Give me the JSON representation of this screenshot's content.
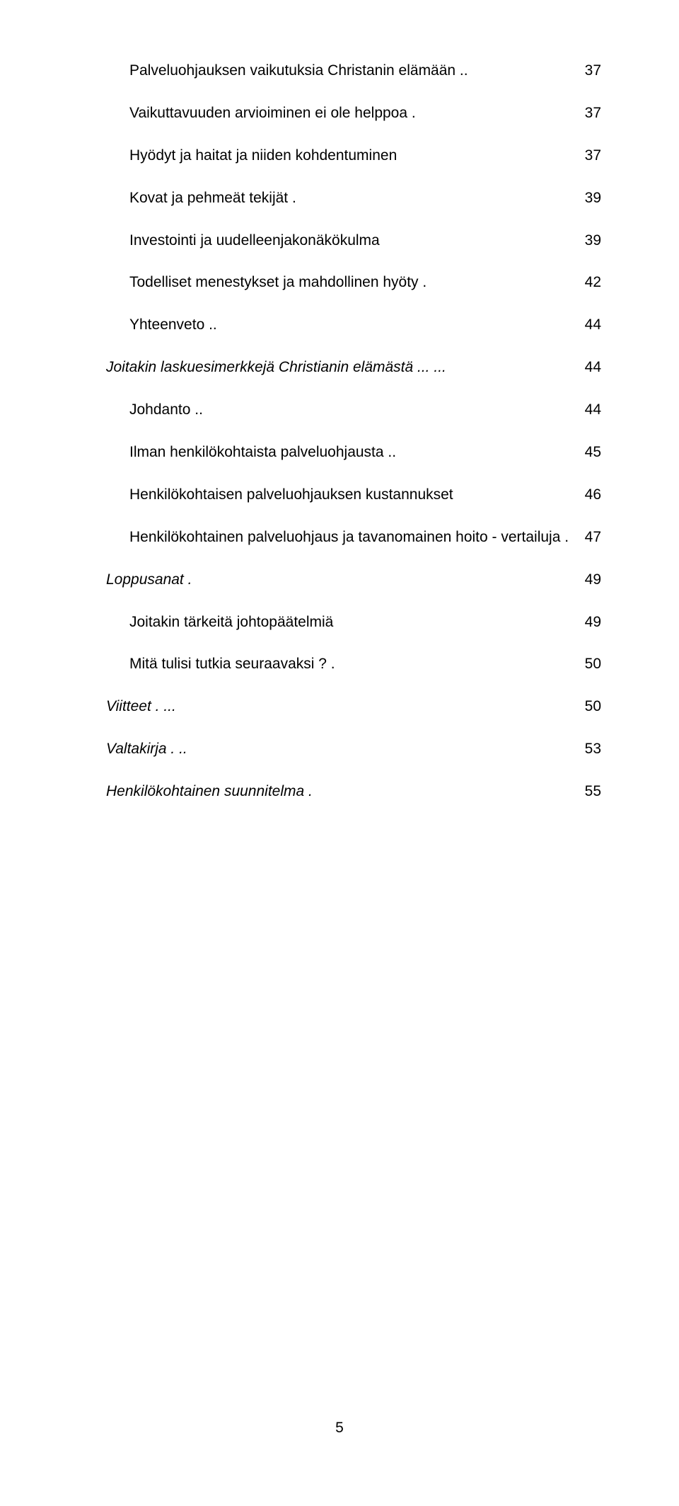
{
  "toc": [
    {
      "label": "Palveluohjauksen vaikutuksia Christanin elämään",
      "page": "37",
      "indent": 1,
      "italic": false,
      "dots": ".."
    },
    {
      "label": "Vaikuttavuuden arvioiminen ei ole helppoa",
      "page": "37",
      "indent": 2,
      "italic": false,
      "dots": "."
    },
    {
      "label": "Hyödyt ja haitat ja niiden kohdentuminen",
      "page": "37",
      "indent": 2,
      "italic": false,
      "dots": ""
    },
    {
      "label": "Kovat ja pehmeät tekijät",
      "page": "39",
      "indent": 2,
      "italic": false,
      "dots": "."
    },
    {
      "label": "Investointi ja uudelleenjakonäkökulma",
      "page": "39",
      "indent": 2,
      "italic": false,
      "dots": ""
    },
    {
      "label": "Todelliset menestykset ja mahdollinen hyöty",
      "page": "42",
      "indent": 2,
      "italic": false,
      "dots": "."
    },
    {
      "label": "Yhteenveto",
      "page": "44",
      "indent": 2,
      "italic": false,
      "dots": ".."
    },
    {
      "label": "Joitakin laskuesimerkkejä Christianin elämästä",
      "page": "44",
      "indent": 0,
      "italic": true,
      "dots": "... ..."
    },
    {
      "label": "Johdanto",
      "page": "44",
      "indent": 1,
      "italic": false,
      "dots": ".."
    },
    {
      "label": "Ilman henkilökohtaista palveluohjausta",
      "page": "45",
      "indent": 1,
      "italic": false,
      "dots": ".."
    },
    {
      "label": "Henkilökohtaisen palveluohjauksen kustannukset",
      "page": "46",
      "indent": 1,
      "italic": false,
      "dots": ""
    },
    {
      "label": "Henkilökohtainen palveluohjaus ja tavanomainen hoito - vertailuja .",
      "page": "47",
      "indent": 1,
      "italic": false,
      "dots": ""
    },
    {
      "label": "Loppusanat",
      "page": "49",
      "indent": 0,
      "italic": true,
      "dots": "."
    },
    {
      "label": "Joitakin tärkeitä johtopäätelmiä",
      "page": "49",
      "indent": 1,
      "italic": false,
      "dots": ""
    },
    {
      "label": "Mitä tulisi tutkia seuraavaksi ?",
      "page": "50",
      "indent": 1,
      "italic": false,
      "dots": "."
    },
    {
      "label": "Viitteet",
      "page": "50",
      "indent": 0,
      "italic": true,
      "dots": ". ..."
    },
    {
      "label": "Valtakirja",
      "page": "53",
      "indent": 0,
      "italic": true,
      "dots": ". .."
    },
    {
      "label": "Henkilökohtainen suunnitelma",
      "page": "55",
      "indent": 0,
      "italic": true,
      "dots": "."
    }
  ],
  "pageNumber": "5",
  "dotFill": " .  .  .  .  .  .  .  .  .  .  .  .  .  .  .  .  .  .  .  .  .  .  .  .  .  .  .  .  .  .  .  .  .  .  .  .  .  .  .  .  .  .  .  .  .  .  .  .  .  .  .  .  .  .  .  .  .  .  .  .  .  .  .  .  .  .  .  .  .  .  .  .  .  .  .  .  .  .  .  ."
}
